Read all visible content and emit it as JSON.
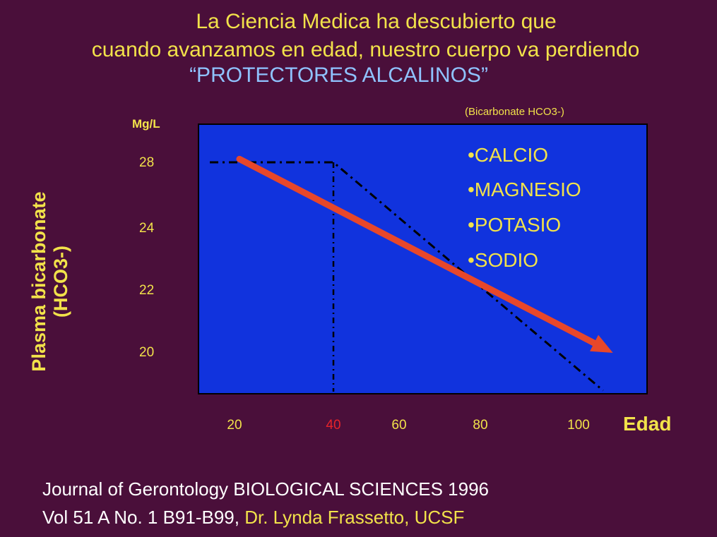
{
  "header": {
    "line1": "La Ciencia Medica ha descubierto que",
    "line2": "cuando avanzamos en edad, nuestro cuerpo va perdiendo",
    "line3": "“PROTECTORES ALCALINOS”"
  },
  "colors": {
    "background": "#4a0f3a",
    "text_yellow": "#f2e24a",
    "plot_bg": "#1133dd",
    "arrow": "#e8472a",
    "highlight_tick": "#e8232a"
  },
  "chart_data": {
    "type": "line",
    "subtitle": "(Bicarbonate HCO3-)",
    "ylabel": "Plasma bicarbonate (HCO3-)",
    "yunit": "Mg/L",
    "xlabel": "Edad",
    "y_ticks": [
      "28",
      "24",
      "22",
      "20"
    ],
    "x_ticks": [
      "20",
      "40",
      "60",
      "80",
      "100"
    ],
    "highlight_x_tick": "40",
    "series": [
      {
        "style": "dash-dot",
        "x": [
          15,
          40,
          105
        ],
        "y": [
          28,
          28,
          18.8
        ]
      },
      {
        "style": "arrow",
        "x": [
          21,
          107
        ],
        "y": [
          28.2,
          20
        ]
      }
    ],
    "reference_line_x": 40,
    "legend": [
      "•CALCIO",
      "•MAGNESIO",
      "•POTASIO",
      "•SODIO"
    ]
  },
  "citation": {
    "line1": "Journal of Gerontology  BIOLOGICAL SCIENCES  1996",
    "line2_white": "Vol 51 A No. 1 B91-B99,",
    "line2_yellow": " Dr. Lynda Frassetto, UCSF"
  }
}
